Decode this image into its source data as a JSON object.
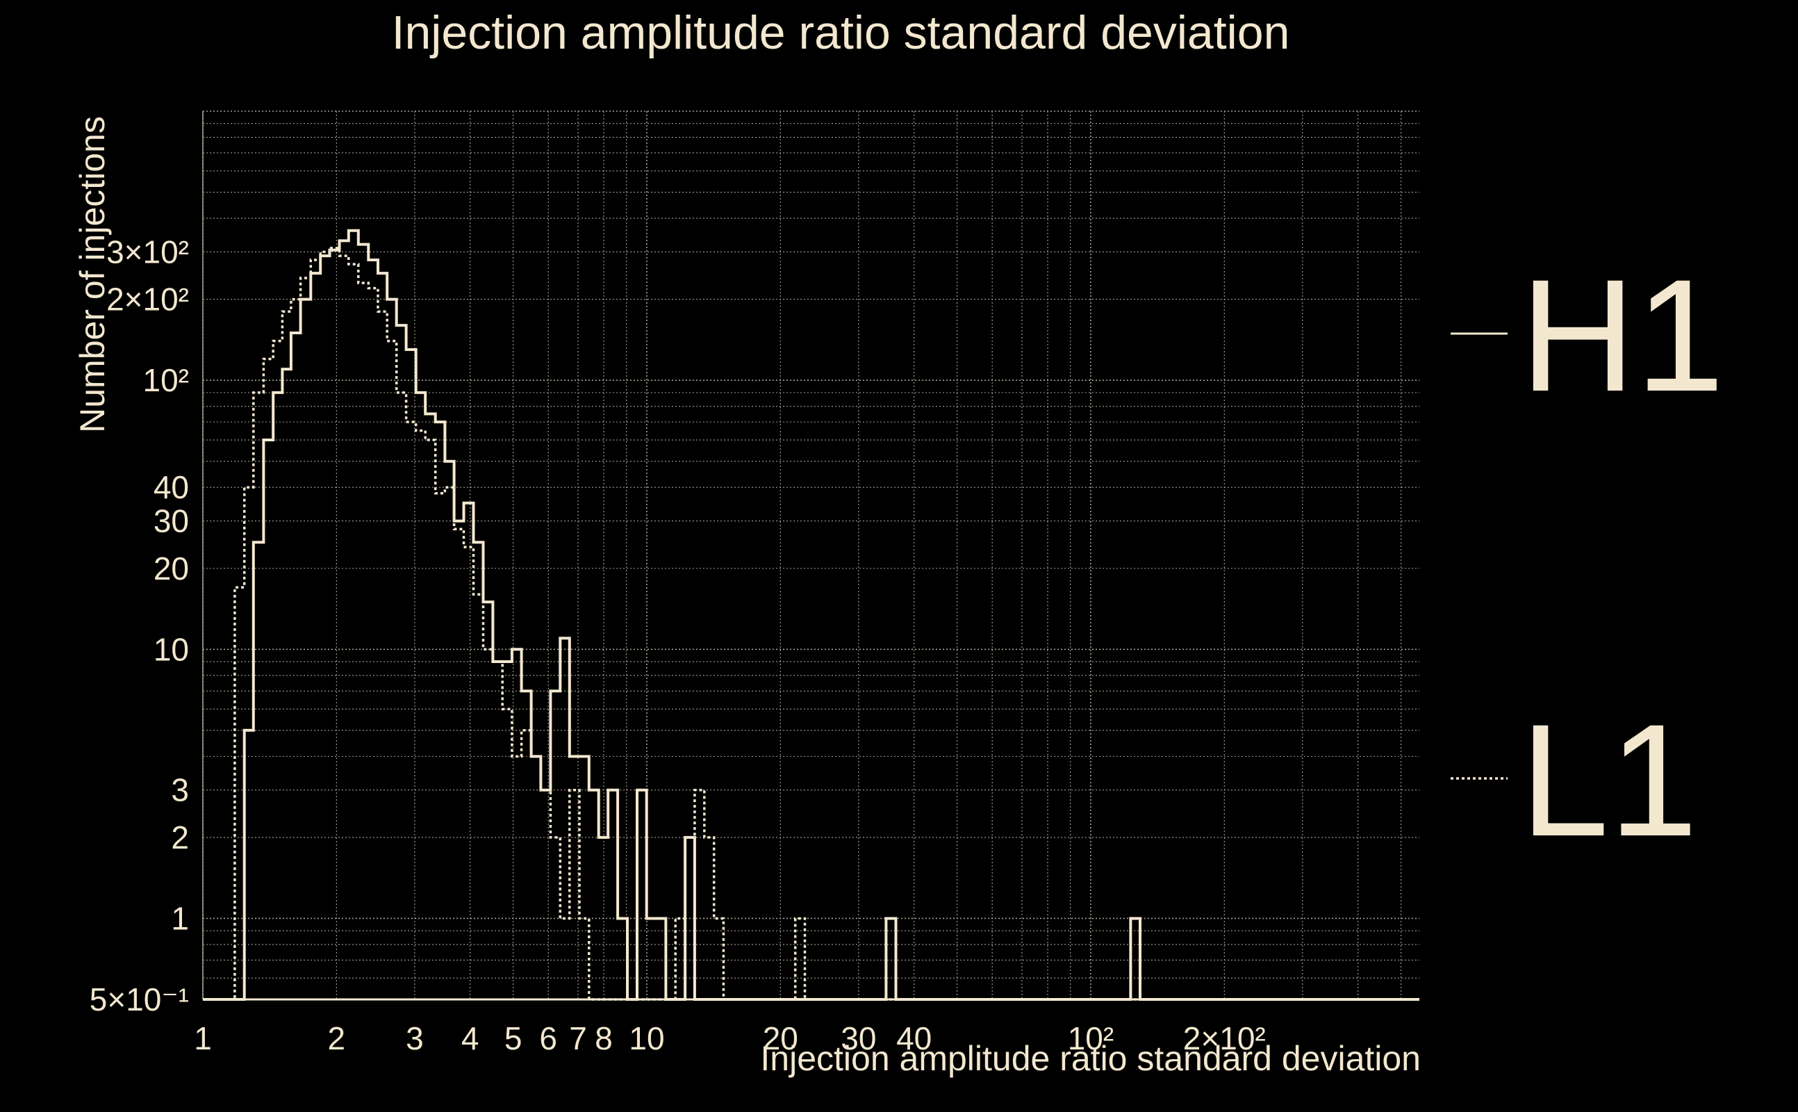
{
  "chart_data": {
    "type": "histogram",
    "title": "Injection amplitude ratio standard deviation",
    "xlabel": "Injection amplitude ratio standard deviation",
    "ylabel": "Number of injections",
    "x_scale": "log",
    "y_scale": "log",
    "xlim": [
      1,
      550
    ],
    "ylim": [
      0.5,
      1000
    ],
    "grid": true,
    "legend_position": "right",
    "colors": {
      "background": "#000000",
      "foreground": "#f3e8cf",
      "grid": "#a8a394"
    },
    "x_ticks": [
      {
        "value": 1,
        "label": "1"
      },
      {
        "value": 2,
        "label": "2"
      },
      {
        "value": 3,
        "label": "3"
      },
      {
        "value": 4,
        "label": "4"
      },
      {
        "value": 5,
        "label": "5"
      },
      {
        "value": 6,
        "label": "6"
      },
      {
        "value": 7,
        "label": "7"
      },
      {
        "value": 8,
        "label": "8"
      },
      {
        "value": 10,
        "label": "10"
      },
      {
        "value": 20,
        "label": "20"
      },
      {
        "value": 30,
        "label": "30"
      },
      {
        "value": 40,
        "label": "40"
      },
      {
        "value": 100,
        "label": "10²"
      },
      {
        "value": 200,
        "label": "2×10²"
      }
    ],
    "y_ticks": [
      {
        "value": 0.5,
        "label": "5×10⁻¹"
      },
      {
        "value": 1,
        "label": "1"
      },
      {
        "value": 2,
        "label": "2"
      },
      {
        "value": 3,
        "label": "3"
      },
      {
        "value": 10,
        "label": "10"
      },
      {
        "value": 20,
        "label": "20"
      },
      {
        "value": 30,
        "label": "30"
      },
      {
        "value": 40,
        "label": "40"
      },
      {
        "value": 100,
        "label": "10²"
      },
      {
        "value": 200,
        "label": "2×10²"
      },
      {
        "value": 300,
        "label": "3×10²"
      }
    ],
    "series": [
      {
        "name": "H1",
        "style": "solid",
        "bin_edges": [
          1.0,
          1.24,
          1.3,
          1.37,
          1.44,
          1.51,
          1.58,
          1.66,
          1.75,
          1.84,
          1.93,
          2.03,
          2.13,
          2.24,
          2.36,
          2.48,
          2.6,
          2.73,
          2.87,
          3.02,
          3.17,
          3.34,
          3.51,
          3.68,
          3.87,
          4.07,
          4.28,
          4.5,
          4.73,
          4.97,
          5.22,
          5.49,
          5.77,
          6.07,
          6.38,
          6.7,
          7.05,
          7.41,
          7.79,
          8.18,
          8.6,
          9.04,
          9.51,
          9.99,
          10.5,
          11.04,
          11.6,
          12.2,
          12.82,
          13.48,
          14.17,
          14.89,
          15.65,
          16.45,
          17.3,
          34.6,
          36.4,
          123.0,
          129.2,
          550.0
        ],
        "values": [
          0.5,
          5,
          25,
          60,
          90,
          110,
          150,
          200,
          250,
          290,
          305,
          330,
          360,
          320,
          280,
          250,
          200,
          160,
          130,
          90,
          75,
          70,
          50,
          30,
          35,
          25,
          15,
          9,
          9,
          10,
          7,
          4,
          3,
          7,
          11,
          4,
          4,
          3,
          2,
          3,
          1,
          0.5,
          3,
          1,
          1,
          0.5,
          0.5,
          2,
          0.5,
          0.5,
          0.5,
          0.5,
          0.5,
          0.5,
          0.5,
          1,
          0.5,
          1,
          0.5
        ]
      },
      {
        "name": "L1",
        "style": "dotted",
        "bin_edges": [
          1.0,
          1.18,
          1.24,
          1.3,
          1.37,
          1.44,
          1.51,
          1.58,
          1.66,
          1.75,
          1.84,
          1.93,
          2.03,
          2.13,
          2.24,
          2.36,
          2.48,
          2.6,
          2.73,
          2.87,
          3.02,
          3.17,
          3.34,
          3.51,
          3.68,
          3.87,
          4.07,
          4.28,
          4.5,
          4.73,
          4.97,
          5.22,
          5.49,
          5.77,
          6.07,
          6.38,
          6.7,
          7.05,
          7.41,
          7.79,
          8.18,
          8.6,
          9.04,
          9.51,
          9.99,
          10.5,
          11.04,
          11.6,
          12.2,
          12.82,
          13.48,
          14.17,
          14.89,
          15.65,
          16.45,
          17.3,
          21.6,
          22.7,
          550.0
        ],
        "values": [
          0.5,
          17,
          40,
          90,
          120,
          140,
          180,
          200,
          240,
          280,
          300,
          310,
          290,
          270,
          230,
          220,
          180,
          140,
          90,
          70,
          65,
          60,
          38,
          40,
          28,
          24,
          16,
          10,
          9,
          6,
          4,
          5,
          4,
          3,
          2,
          1,
          3,
          1,
          0.5,
          0.5,
          0.5,
          0.5,
          0.5,
          0.5,
          0.5,
          0.5,
          0.5,
          1,
          2,
          3,
          2,
          1,
          0.5,
          0.5,
          0.5,
          0.5,
          1,
          0.5
        ]
      }
    ]
  }
}
